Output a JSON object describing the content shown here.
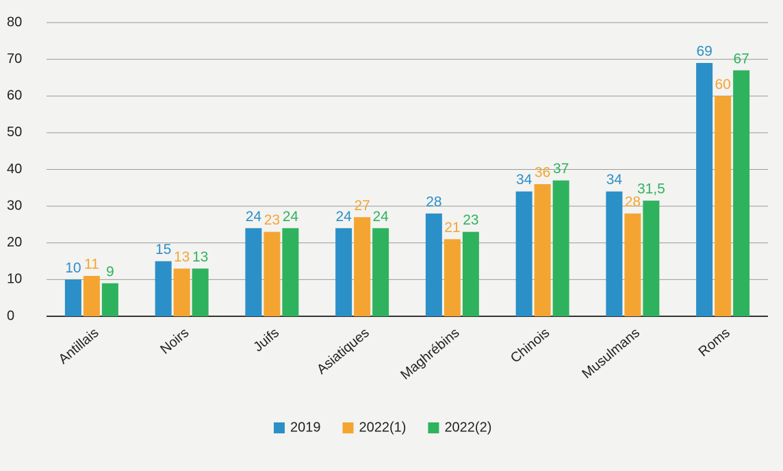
{
  "chart_data": {
    "type": "bar",
    "categories": [
      "Antillais",
      "Noirs",
      "Juifs",
      "Asiatiques",
      "Maghrébins",
      "Chinois",
      "Musulmans",
      "Roms"
    ],
    "series": [
      {
        "name": "2019",
        "color": "#2b8fc8",
        "values": [
          10,
          15,
          24,
          24,
          28,
          34,
          34,
          69
        ]
      },
      {
        "name": "2022(1)",
        "color": "#f4a531",
        "values": [
          11,
          13,
          23,
          27,
          21,
          36,
          28,
          60
        ]
      },
      {
        "name": "2022(2)",
        "color": "#2fb25e",
        "values": [
          9,
          13,
          24,
          24,
          23,
          37,
          31.5,
          67
        ],
        "value_labels": [
          "9",
          "13",
          "24",
          "24",
          "23",
          "37",
          "31,5",
          "67"
        ]
      }
    ],
    "ylim": [
      0,
      80
    ],
    "yticks": [
      0,
      10,
      20,
      30,
      40,
      50,
      60,
      70,
      80
    ],
    "grid": true,
    "legend": "bottom"
  }
}
